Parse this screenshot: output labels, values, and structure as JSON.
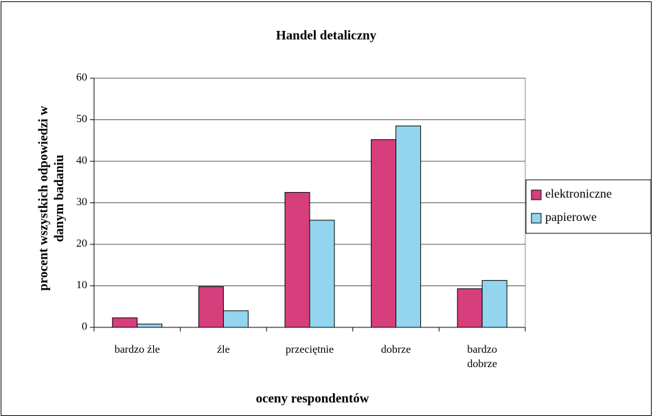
{
  "chart_data": {
    "type": "bar",
    "title": "Handel detaliczny",
    "x_label": "oceny respondentów",
    "y_label": "procent wszystkich odpowiedzi w danym badaniu",
    "categories": [
      "bardzo źle",
      "źle",
      "przeciętnie",
      "dobrze",
      "bardzo dobrze"
    ],
    "series": [
      {
        "name": "elektroniczne",
        "color": "#d63f7c",
        "values": [
          2.3,
          9.8,
          32.5,
          45.2,
          9.3
        ]
      },
      {
        "name": "papierowe",
        "color": "#93d5ee",
        "values": [
          0.8,
          4.0,
          25.8,
          48.5,
          11.3
        ]
      }
    ],
    "ylim": [
      0,
      60
    ],
    "yticks": [
      0,
      10,
      20,
      30,
      40,
      50,
      60
    ],
    "grid": true,
    "legend": "right"
  }
}
